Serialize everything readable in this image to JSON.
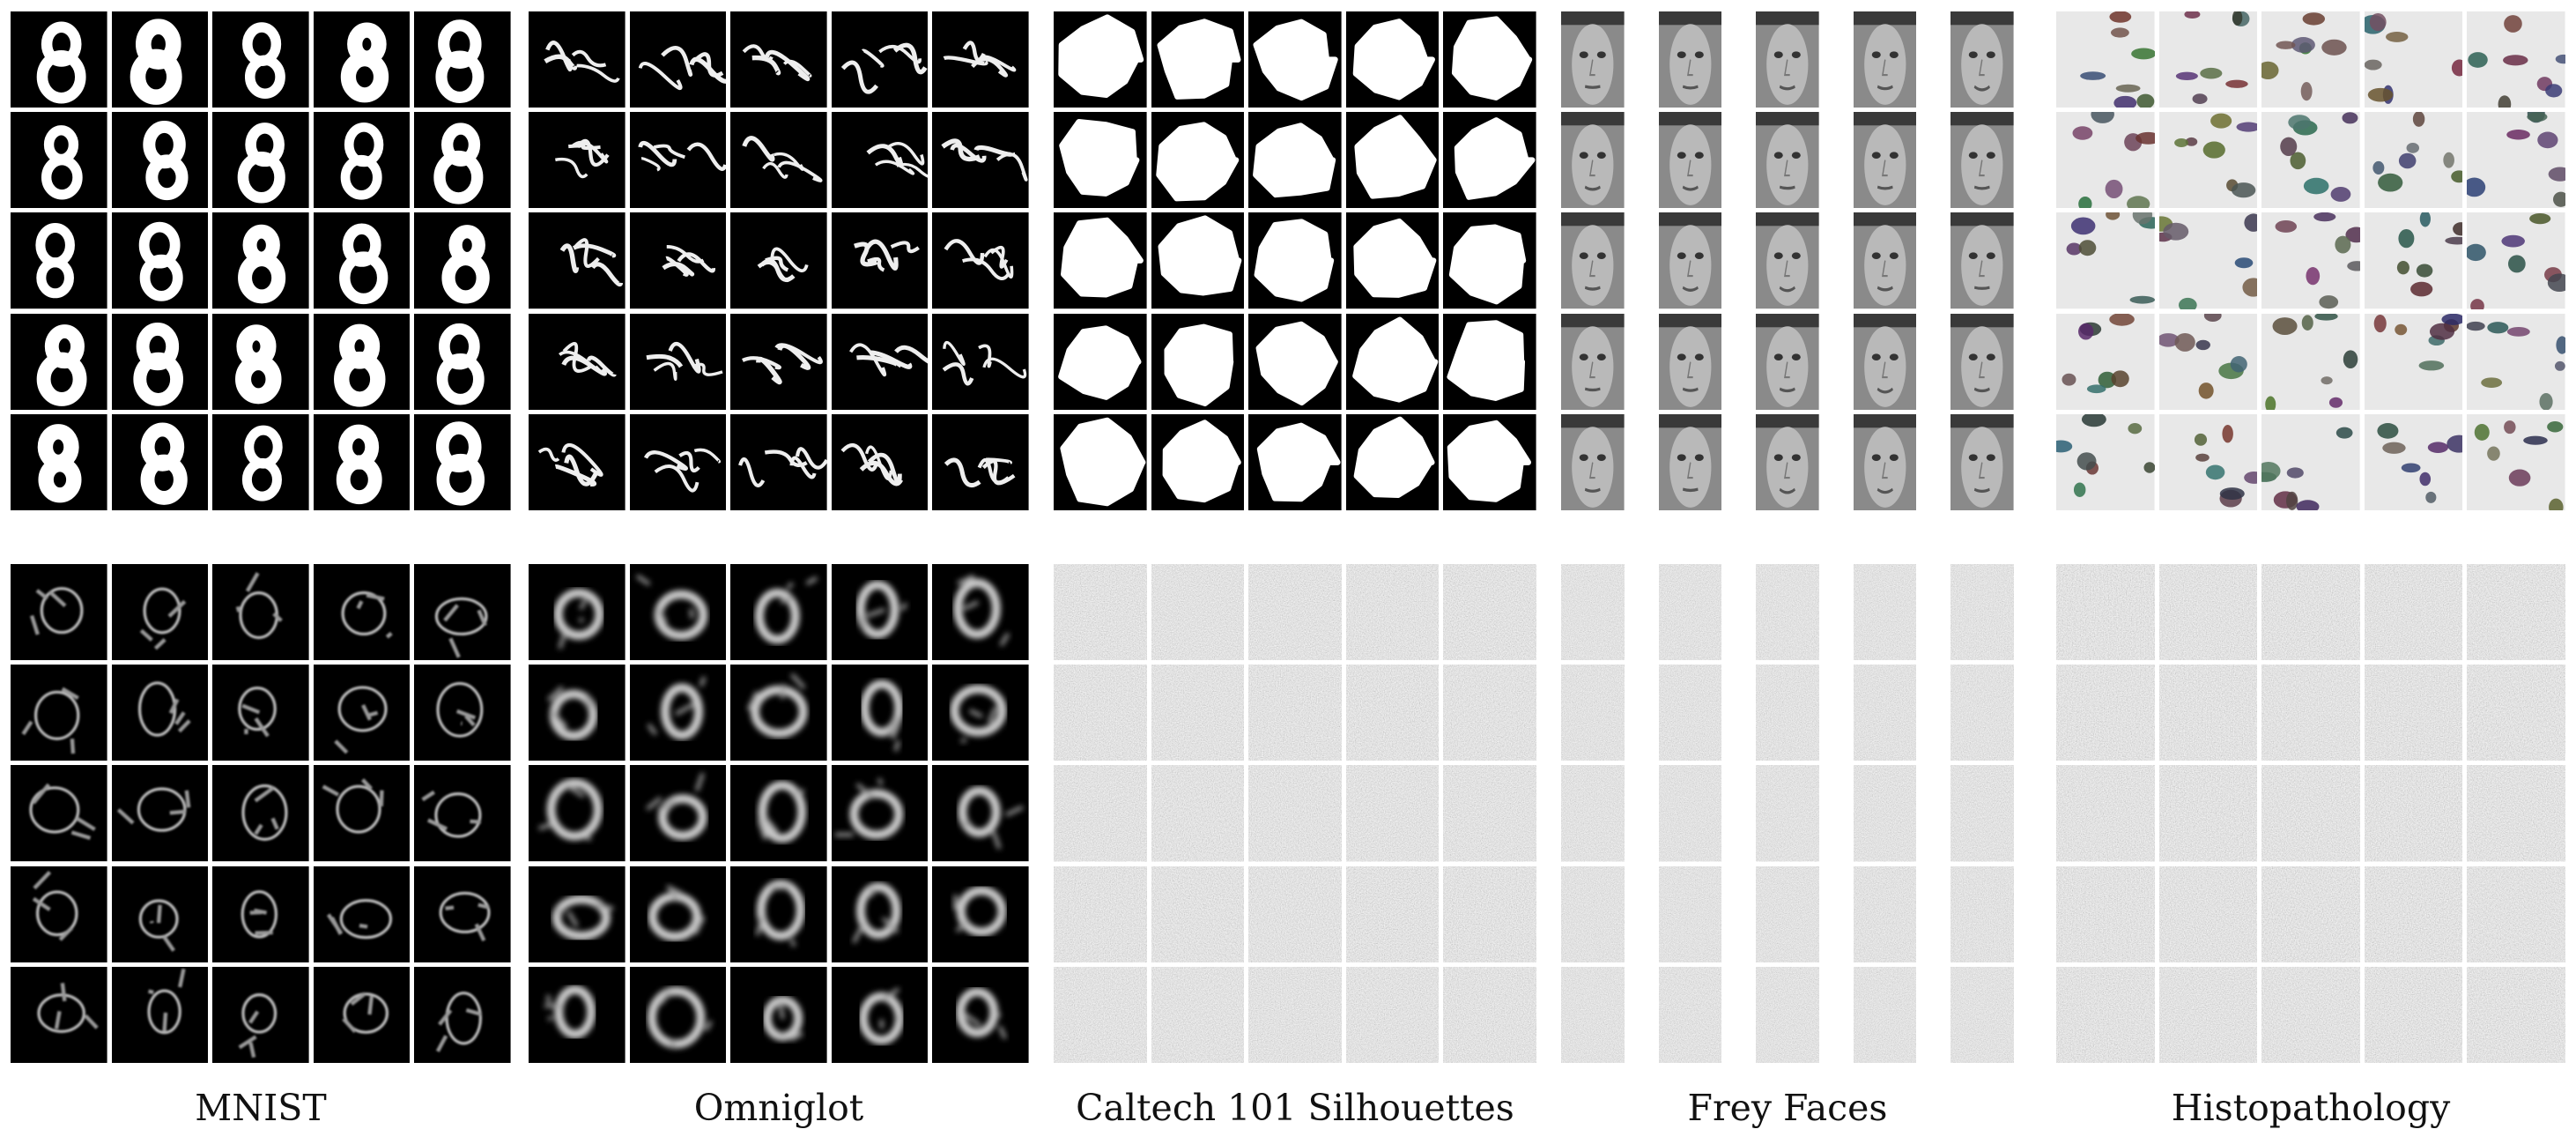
{
  "figure": {
    "rows": [
      {
        "row": "samples-top"
      },
      {
        "row": "samples-bottom"
      }
    ],
    "datasets": [
      {
        "id": "mnist",
        "label": "MNIST",
        "top_style": "digit-8",
        "bottom_style": "noisy-strokes",
        "grid": "5x5"
      },
      {
        "id": "omniglot",
        "label": "Omniglot",
        "top_style": "thin-characters",
        "bottom_style": "blurry-characters",
        "grid": "5x5"
      },
      {
        "id": "caltech",
        "label": "Caltech 101 Silhouettes",
        "top_style": "white-blobs",
        "bottom_style": "gray-noise",
        "grid": "5x5"
      },
      {
        "id": "frey",
        "label": "Frey Faces",
        "top_style": "faces",
        "bottom_style": "gray-noise",
        "grid": "5x5"
      },
      {
        "id": "histo",
        "label": "Histopathology",
        "top_style": "tissue-texture",
        "bottom_style": "gray-noise",
        "grid": "5x5"
      }
    ],
    "colors": {
      "background": "#ffffff",
      "tile_dark": "#000000",
      "tile_light": "#ffffff",
      "label_text": "#111111"
    }
  }
}
